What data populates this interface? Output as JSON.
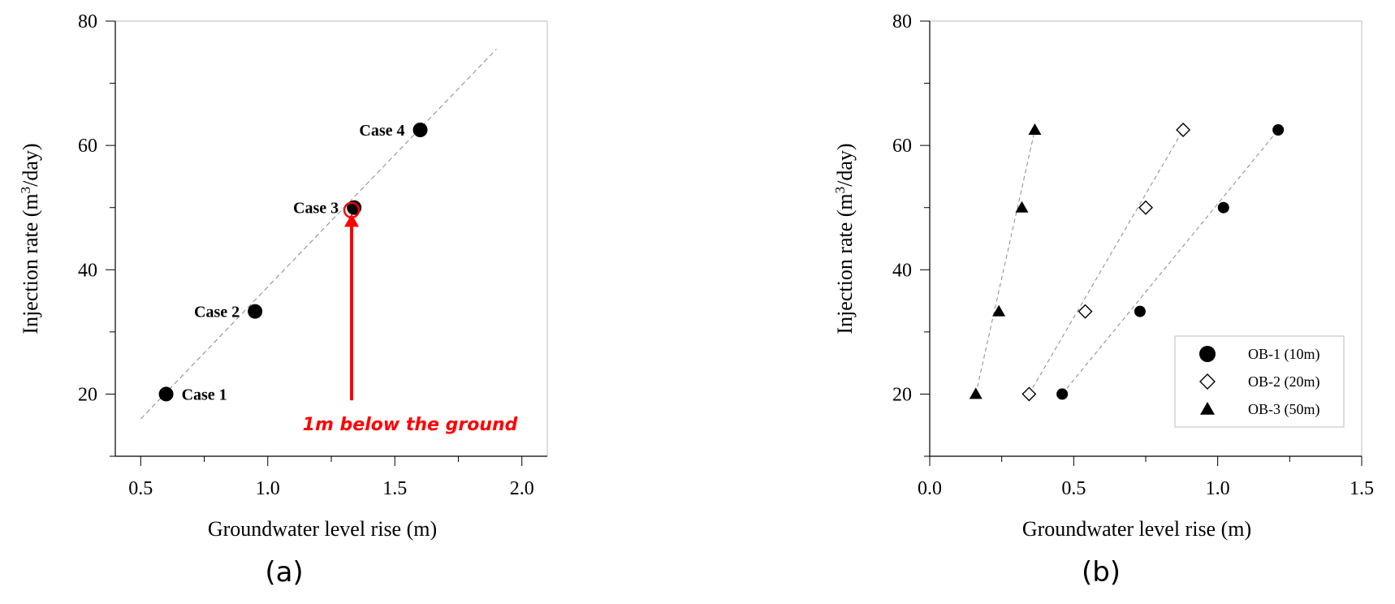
{
  "chart_data": [
    {
      "type": "scatter",
      "panel_label": "(a)",
      "xlabel": "Groundwater level rise (m)",
      "ylabel_main": "Injection rate (m",
      "ylabel_sup": "3",
      "ylabel_end": "/day)",
      "xlim": [
        0.4,
        2.1
      ],
      "ylim": [
        10,
        80
      ],
      "xticks": [
        "0.5",
        "1.0",
        "1.5",
        "2.0"
      ],
      "yticks": [
        "20",
        "40",
        "60",
        "80"
      ],
      "grid": false,
      "points": [
        {
          "label": "Case 1",
          "x": 0.6,
          "y": 20
        },
        {
          "label": "Case 2",
          "x": 0.95,
          "y": 33.3
        },
        {
          "label": "Case 3",
          "x": 1.34,
          "y": 50
        },
        {
          "label": "Case 4",
          "x": 1.6,
          "y": 62.5
        }
      ],
      "trend_line": {
        "x": [
          0.5,
          1.9
        ],
        "y": [
          16,
          75.5
        ]
      },
      "highlight": {
        "x": 1.33,
        "y": 49.6,
        "color": "#ff0000"
      },
      "annotation": {
        "text": "1m below the ground",
        "color": "#ff0000",
        "arrow_x": 1.33,
        "arrow_from_y": 19,
        "arrow_to_y": 49
      }
    },
    {
      "type": "scatter",
      "panel_label": "(b)",
      "xlabel": "Groundwater level rise (m)",
      "ylabel_main": "Injection rate (m",
      "ylabel_sup": "3",
      "ylabel_end": "/day)",
      "xlim": [
        0.0,
        1.5
      ],
      "ylim": [
        10,
        80
      ],
      "xticks": [
        "0.0",
        "0.5",
        "1.0",
        "1.5"
      ],
      "yticks": [
        "20",
        "40",
        "60",
        "80"
      ],
      "grid": false,
      "legend_position": "bottom-right",
      "series": [
        {
          "name": "OB-1 (10m)",
          "marker": "circle-filled",
          "x": [
            0.46,
            0.73,
            1.02,
            1.21
          ],
          "y": [
            20,
            33.3,
            50,
            62.5
          ]
        },
        {
          "name": "OB-2 (20m)",
          "marker": "diamond-open",
          "x": [
            0.345,
            0.54,
            0.75,
            0.88
          ],
          "y": [
            20,
            33.3,
            50,
            62.5
          ]
        },
        {
          "name": "OB-3 (50m)",
          "marker": "triangle-filled",
          "x": [
            0.16,
            0.24,
            0.32,
            0.365
          ],
          "y": [
            20,
            33.3,
            50,
            62.5
          ]
        }
      ]
    }
  ]
}
